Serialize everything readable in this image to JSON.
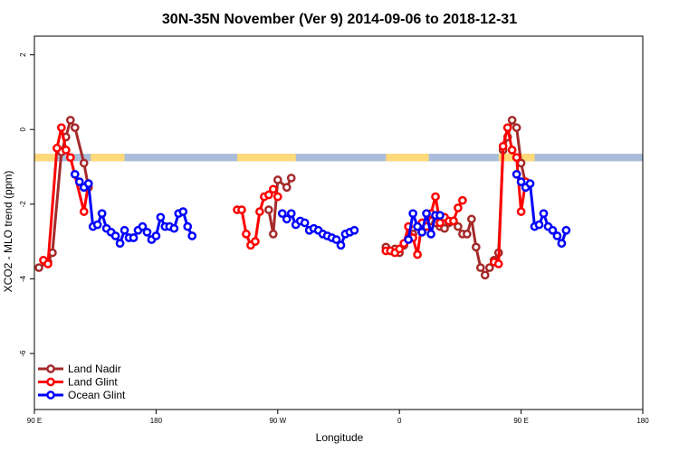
{
  "chart_data": {
    "type": "line",
    "title": "30N-35N November (Ver 9)   2014-09-06 to 2018-12-31",
    "xlabel": "Longitude",
    "ylabel": "XCO2 - MLO trend (ppm)",
    "xlim": [
      -90,
      180
    ],
    "ylim": [
      -7.5,
      2.5
    ],
    "x_ticks": [
      {
        "value": -90,
        "label": "90 E"
      },
      {
        "value": -36,
        "label": "180"
      },
      {
        "value": 18,
        "label": "90 W"
      },
      {
        "value": 72,
        "label": "0"
      },
      {
        "value": 126,
        "label": "90 E"
      },
      {
        "value": 180,
        "label": "180"
      }
    ],
    "y_ticks": [
      {
        "value": 2,
        "label": "2"
      },
      {
        "value": 0,
        "label": "0"
      },
      {
        "value": -2,
        "label": "-2"
      },
      {
        "value": -4,
        "label": "-4"
      },
      {
        "value": -6,
        "label": "-6"
      }
    ],
    "grid": false,
    "legend_position": "bottom-left",
    "land_ocean_band": {
      "y_range": [
        -0.85,
        -0.65
      ],
      "land_color": "#FFD97A",
      "ocean_color": "#A9BCD8",
      "land_segments": [
        [
          -90,
          -80
        ],
        [
          -65,
          -50
        ],
        [
          0,
          26
        ],
        [
          66,
          85
        ],
        [
          116,
          132
        ]
      ]
    },
    "series": [
      {
        "name": "Land Nadir",
        "color": "#A52A2A",
        "segments": [
          [
            [
              -88,
              -3.7
            ],
            [
              -84,
              -3.55
            ],
            [
              -82,
              -3.3
            ],
            [
              -78,
              -0.6
            ],
            [
              -76,
              -0.2
            ],
            [
              -74,
              0.25
            ],
            [
              -72,
              0.05
            ],
            [
              -68,
              -0.9
            ],
            [
              -66,
              -1.55
            ]
          ],
          [
            [
              14,
              -2.15
            ],
            [
              16,
              -2.8
            ],
            [
              18,
              -1.35
            ],
            [
              22,
              -1.55
            ],
            [
              24,
              -1.3
            ]
          ],
          [
            [
              66,
              -3.15
            ],
            [
              70,
              -3.2
            ],
            [
              72,
              -3.3
            ],
            [
              74,
              -3.1
            ],
            [
              76,
              -2.9
            ],
            [
              78,
              -2.8
            ],
            [
              80,
              -2.6
            ],
            [
              82,
              -2.75
            ],
            [
              84,
              -2.5
            ],
            [
              86,
              -2.45
            ],
            [
              88,
              -2.5
            ],
            [
              90,
              -2.6
            ],
            [
              92,
              -2.65
            ],
            [
              94,
              -2.5
            ],
            [
              96,
              -2.45
            ],
            [
              98,
              -2.6
            ],
            [
              100,
              -2.8
            ],
            [
              102,
              -2.8
            ],
            [
              104,
              -2.4
            ],
            [
              106,
              -3.15
            ],
            [
              108,
              -3.7
            ],
            [
              110,
              -3.9
            ],
            [
              112,
              -3.7
            ],
            [
              114,
              -3.5
            ],
            [
              116,
              -3.3
            ],
            [
              118,
              -0.55
            ],
            [
              120,
              -0.2
            ],
            [
              122,
              0.25
            ],
            [
              124,
              0.05
            ],
            [
              126,
              -0.9
            ],
            [
              128,
              -1.45
            ]
          ]
        ]
      },
      {
        "name": "Land Glint",
        "color": "#FF0000",
        "segments": [
          [
            [
              -86,
              -3.5
            ],
            [
              -84,
              -3.6
            ],
            [
              -80,
              -0.5
            ],
            [
              -78,
              0.05
            ],
            [
              -76,
              -0.55
            ],
            [
              -74,
              -0.75
            ],
            [
              -68,
              -2.2
            ],
            [
              -66,
              -1.45
            ]
          ],
          [
            [
              0,
              -2.15
            ],
            [
              2,
              -2.15
            ],
            [
              4,
              -2.8
            ],
            [
              6,
              -3.1
            ],
            [
              8,
              -3
            ],
            [
              10,
              -2.2
            ],
            [
              12,
              -1.8
            ],
            [
              14,
              -1.75
            ],
            [
              16,
              -1.6
            ],
            [
              18,
              -1.8
            ]
          ],
          [
            [
              66,
              -3.25
            ],
            [
              68,
              -3.25
            ],
            [
              70,
              -3.3
            ],
            [
              72,
              -3.2
            ],
            [
              74,
              -3.05
            ],
            [
              76,
              -2.6
            ],
            [
              78,
              -2.9
            ],
            [
              80,
              -3.35
            ],
            [
              82,
              -2.5
            ],
            [
              84,
              -2.6
            ],
            [
              86,
              -2.25
            ],
            [
              88,
              -1.8
            ],
            [
              90,
              -2.5
            ],
            [
              92,
              -2.35
            ],
            [
              94,
              -2.45
            ],
            [
              96,
              -2.45
            ],
            [
              98,
              -2.1
            ],
            [
              100,
              -1.9
            ]
          ],
          [
            [
              114,
              -3.55
            ],
            [
              116,
              -3.6
            ],
            [
              118,
              -0.45
            ],
            [
              120,
              0.05
            ],
            [
              122,
              -0.55
            ],
            [
              124,
              -0.75
            ],
            [
              126,
              -2.2
            ],
            [
              128,
              -1.4
            ]
          ]
        ]
      },
      {
        "name": "Ocean Glint",
        "color": "#0000FF",
        "segments": [
          [
            [
              -72,
              -1.2
            ],
            [
              -70,
              -1.4
            ],
            [
              -68,
              -1.55
            ],
            [
              -66,
              -1.45
            ],
            [
              -64,
              -2.6
            ],
            [
              -62,
              -2.55
            ],
            [
              -60,
              -2.25
            ],
            [
              -58,
              -2.65
            ],
            [
              -56,
              -2.75
            ],
            [
              -54,
              -2.85
            ],
            [
              -52,
              -3.05
            ],
            [
              -50,
              -2.7
            ],
            [
              -48,
              -2.9
            ],
            [
              -46,
              -2.9
            ],
            [
              -44,
              -2.7
            ],
            [
              -42,
              -2.6
            ],
            [
              -40,
              -2.75
            ],
            [
              -38,
              -2.95
            ],
            [
              -36,
              -2.85
            ],
            [
              -34,
              -2.35
            ],
            [
              -32,
              -2.6
            ],
            [
              -30,
              -2.6
            ],
            [
              -28,
              -2.65
            ],
            [
              -26,
              -2.25
            ],
            [
              -24,
              -2.2
            ],
            [
              -22,
              -2.6
            ],
            [
              -20,
              -2.85
            ]
          ],
          [
            [
              20,
              -2.25
            ],
            [
              22,
              -2.4
            ],
            [
              24,
              -2.25
            ],
            [
              26,
              -2.55
            ],
            [
              28,
              -2.45
            ],
            [
              30,
              -2.5
            ],
            [
              32,
              -2.7
            ],
            [
              34,
              -2.65
            ],
            [
              36,
              -2.7
            ],
            [
              38,
              -2.8
            ],
            [
              40,
              -2.85
            ],
            [
              42,
              -2.9
            ],
            [
              44,
              -2.95
            ],
            [
              46,
              -3.1
            ],
            [
              48,
              -2.8
            ],
            [
              50,
              -2.75
            ],
            [
              52,
              -2.7
            ]
          ],
          [
            [
              76,
              -2.95
            ],
            [
              78,
              -2.25
            ],
            [
              80,
              -2.6
            ],
            [
              82,
              -2.75
            ],
            [
              84,
              -2.25
            ],
            [
              86,
              -2.8
            ],
            [
              88,
              -2.3
            ],
            [
              90,
              -2.3
            ]
          ],
          [
            [
              124,
              -1.2
            ],
            [
              126,
              -1.4
            ],
            [
              128,
              -1.55
            ],
            [
              130,
              -1.45
            ],
            [
              132,
              -2.6
            ],
            [
              134,
              -2.55
            ],
            [
              136,
              -2.25
            ],
            [
              138,
              -2.6
            ],
            [
              140,
              -2.7
            ],
            [
              142,
              -2.85
            ],
            [
              144,
              -3.05
            ],
            [
              146,
              -2.7
            ]
          ]
        ]
      }
    ]
  }
}
